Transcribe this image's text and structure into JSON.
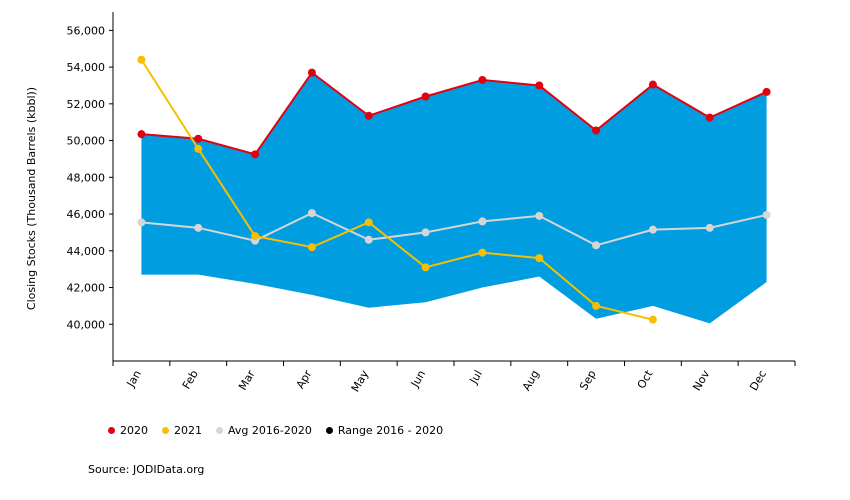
{
  "chart_data": {
    "type": "line",
    "ylabel": "Closing Stocks (Thousand Barrels (kbbl))",
    "xlabel": "",
    "categories": [
      "Jan",
      "Feb",
      "Mar",
      "Apr",
      "May",
      "Jun",
      "Jul",
      "Aug",
      "Sep",
      "Oct",
      "Nov",
      "Dec"
    ],
    "ylim": [
      38000,
      57000
    ],
    "yticks": [
      40000,
      42000,
      44000,
      46000,
      48000,
      50000,
      52000,
      54000,
      56000
    ],
    "ytick_labels": [
      "40,000",
      "42,000",
      "44,000",
      "46,000",
      "48,000",
      "50,000",
      "52,000",
      "54,000",
      "56,000"
    ],
    "series": [
      {
        "name": "2020",
        "color": "#e3000f",
        "values": [
          50350,
          50100,
          49250,
          53700,
          51350,
          52400,
          53300,
          53000,
          50550,
          53050,
          51250,
          52650
        ]
      },
      {
        "name": "2021",
        "color": "#f7bf00",
        "values": [
          54400,
          49550,
          44800,
          44200,
          45550,
          43100,
          43900,
          43600,
          41000,
          40250,
          null,
          null
        ]
      },
      {
        "name": "Avg 2016-2020",
        "color": "#d6d6d6",
        "values": [
          45550,
          45250,
          44550,
          46050,
          44600,
          45000,
          45600,
          45900,
          44300,
          45150,
          45250,
          45950
        ]
      }
    ],
    "range": {
      "name": "Range 2016 - 2020",
      "color": "#009de0",
      "min": [
        42700,
        42700,
        42200,
        41600,
        40900,
        41200,
        42000,
        42600,
        40300,
        41000,
        40050,
        42300
      ],
      "max": [
        50350,
        50100,
        49250,
        53700,
        51350,
        52400,
        53300,
        53000,
        50550,
        53050,
        51250,
        52650
      ]
    },
    "legend": [
      {
        "label": "2020",
        "color": "#e3000f"
      },
      {
        "label": "2021",
        "color": "#f7bf00"
      },
      {
        "label": "Avg 2016-2020",
        "color": "#d6d6d6"
      },
      {
        "label": "Range 2016 - 2020",
        "color": "#000000"
      }
    ],
    "legend_position": "bottom-left",
    "grid": false
  },
  "source": "Source: JODIData.org"
}
